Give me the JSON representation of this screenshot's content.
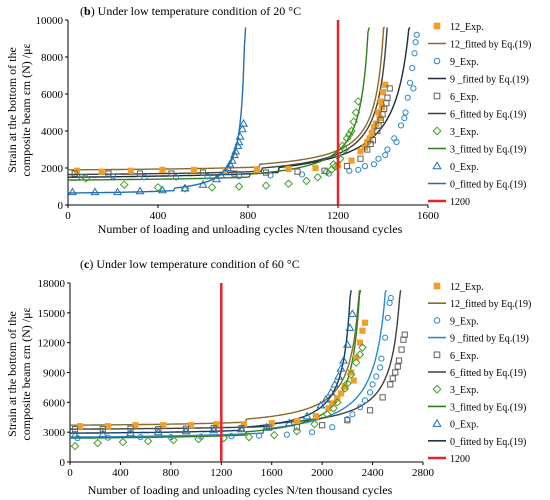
{
  "chart_data": [
    {
      "type": "scatter",
      "title_prefix": "(",
      "title_letter": "b",
      "title_rest": ") Under low temperature condition of 20 °C",
      "xlabel": "Number of loading and unloading cycles N/ten thousand cycles",
      "ylabel_line1": "Strain at the bottom of the",
      "ylabel_line2": "composite beam εm (N) /με",
      "xlim": [
        0,
        1600
      ],
      "ylim": [
        0,
        10000
      ],
      "xticks": [
        "0",
        "400",
        "800",
        "1200",
        "1600"
      ],
      "yticks": [
        "0",
        "2000",
        "4000",
        "6000",
        "8000",
        "10000"
      ],
      "grid": false,
      "legend_position": "right",
      "vline": {
        "x": 1200,
        "label": "1200",
        "color": "#e8232a"
      },
      "series": [
        {
          "name": "12_Exp.",
          "kind": "points",
          "marker": "square",
          "color": "#f0a028",
          "fit": {
            "label": "12_fitted by Eq.(19)",
            "color": "#8a6a2a",
            "a": 1900,
            "b": 210,
            "nf": 1420
          }
        },
        {
          "name": "9_Exp.",
          "kind": "points",
          "marker": "circle",
          "color": "#2a8ac8",
          "fit": {
            "label": "9 _fitted by Eq.(19)",
            "color": "#1e2a3a",
            "a": 1500,
            "b": 360,
            "nf": 1560
          }
        },
        {
          "name": "6_Exp.",
          "kind": "points",
          "marker": "square",
          "color": "#606060",
          "fit": {
            "label": "6_fitted by Eq.(19)",
            "color": "#404040",
            "a": 1650,
            "b": 240,
            "nf": 1440
          }
        },
        {
          "name": "3_Exp.",
          "kind": "points",
          "marker": "diamond",
          "color": "#43a02a",
          "fit": {
            "label": "3_fitted by Eq.(19)",
            "color": "#2e7d1e",
            "a": 1350,
            "b": 220,
            "nf": 1350
          }
        },
        {
          "name": "0_Exp.",
          "kind": "points",
          "marker": "triangle",
          "color": "#1f6fb5",
          "fit": {
            "label": "0_fitted by Eq.(19)",
            "color": "#1f6fb5",
            "a": 650,
            "b": 180,
            "nf": 790
          }
        }
      ],
      "points": {
        "12_Exp.": [
          [
            40,
            1850
          ],
          [
            150,
            1800
          ],
          [
            280,
            1850
          ],
          [
            420,
            1900
          ],
          [
            560,
            1900
          ],
          [
            700,
            1850
          ],
          [
            840,
            1900
          ],
          [
            980,
            1950
          ],
          [
            1100,
            2000
          ],
          [
            1200,
            2150
          ],
          [
            1260,
            2400
          ],
          [
            1300,
            2900
          ],
          [
            1330,
            3400
          ],
          [
            1350,
            3900
          ],
          [
            1370,
            4400
          ],
          [
            1380,
            5000
          ],
          [
            1390,
            5600
          ],
          [
            1400,
            6100
          ],
          [
            1410,
            6500
          ],
          [
            1395,
            5300
          ],
          [
            1385,
            4700
          ],
          [
            1360,
            4200
          ],
          [
            1340,
            3600
          ],
          [
            1320,
            3100
          ]
        ],
        "9_Exp.": [
          [
            60,
            1500
          ],
          [
            200,
            1550
          ],
          [
            340,
            1500
          ],
          [
            480,
            1500
          ],
          [
            620,
            1550
          ],
          [
            760,
            1550
          ],
          [
            900,
            1600
          ],
          [
            1040,
            1650
          ],
          [
            1160,
            1700
          ],
          [
            1250,
            1850
          ],
          [
            1320,
            2100
          ],
          [
            1380,
            2500
          ],
          [
            1420,
            3000
          ],
          [
            1450,
            3600
          ],
          [
            1480,
            4300
          ],
          [
            1500,
            5000
          ],
          [
            1510,
            5800
          ],
          [
            1520,
            6600
          ],
          [
            1530,
            7400
          ],
          [
            1540,
            8200
          ],
          [
            1545,
            8800
          ],
          [
            1550,
            9200
          ],
          [
            1535,
            6300
          ],
          [
            1495,
            4700
          ],
          [
            1460,
            3400
          ],
          [
            1410,
            2700
          ],
          [
            1360,
            2200
          ],
          [
            1290,
            1900
          ]
        ],
        "6_Exp.": [
          [
            30,
            1700
          ],
          [
            180,
            1700
          ],
          [
            320,
            1700
          ],
          [
            460,
            1700
          ],
          [
            600,
            1750
          ],
          [
            740,
            1700
          ],
          [
            880,
            1750
          ],
          [
            1020,
            1800
          ],
          [
            1140,
            1850
          ],
          [
            1240,
            2100
          ],
          [
            1300,
            2500
          ],
          [
            1330,
            3000
          ],
          [
            1355,
            3500
          ],
          [
            1375,
            4000
          ],
          [
            1390,
            4600
          ],
          [
            1405,
            5200
          ],
          [
            1420,
            5800
          ],
          [
            1430,
            6300
          ],
          [
            1415,
            5500
          ],
          [
            1398,
            4900
          ],
          [
            1380,
            4300
          ],
          [
            1345,
            3300
          ]
        ],
        "3_Exp.": [
          [
            80,
            1450
          ],
          [
            250,
            1100
          ],
          [
            400,
            950
          ],
          [
            520,
            900
          ],
          [
            640,
            950
          ],
          [
            760,
            1000
          ],
          [
            880,
            1050
          ],
          [
            980,
            1150
          ],
          [
            1060,
            1300
          ],
          [
            1110,
            1500
          ],
          [
            1150,
            1800
          ],
          [
            1180,
            2200
          ],
          [
            1200,
            2700
          ],
          [
            1220,
            3200
          ],
          [
            1240,
            3600
          ],
          [
            1260,
            4000
          ],
          [
            1270,
            4500
          ],
          [
            1280,
            5000
          ],
          [
            1290,
            5600
          ],
          [
            1210,
            2500
          ],
          [
            1190,
            2100
          ],
          [
            1250,
            3800
          ],
          [
            1230,
            3000
          ],
          [
            1170,
            1900
          ]
        ],
        "0_Exp.": [
          [
            20,
            700
          ],
          [
            120,
            700
          ],
          [
            220,
            700
          ],
          [
            320,
            750
          ],
          [
            420,
            800
          ],
          [
            520,
            900
          ],
          [
            600,
            1100
          ],
          [
            660,
            1400
          ],
          [
            700,
            1800
          ],
          [
            720,
            2200
          ],
          [
            740,
            2700
          ],
          [
            755,
            3200
          ],
          [
            765,
            3700
          ],
          [
            775,
            4100
          ],
          [
            780,
            4400
          ],
          [
            760,
            3400
          ],
          [
            745,
            2900
          ],
          [
            730,
            2400
          ],
          [
            710,
            2000
          ],
          [
            680,
            1600
          ]
        ]
      }
    },
    {
      "type": "scatter",
      "title_prefix": "(",
      "title_letter": "c",
      "title_rest": ") Under low temperature condition of 60 °C",
      "xlabel": "Number of loading and unloading cycles N/ten thousand cycles",
      "ylabel_line1": "Strain at the bottom of the",
      "ylabel_line2": "composite beam εm (N) /με",
      "xlim": [
        0,
        2800
      ],
      "ylim": [
        0,
        18000
      ],
      "xticks": [
        "0",
        "400",
        "800",
        "1200",
        "1600",
        "2000",
        "2400",
        "2800"
      ],
      "yticks": [
        "0",
        "3000",
        "6000",
        "9000",
        "12000",
        "15000",
        "18000"
      ],
      "grid": false,
      "legend_position": "right",
      "vline": {
        "x": 1200,
        "label": "1200",
        "color": "#e8232a"
      },
      "series": [
        {
          "name": "12_Exp.",
          "kind": "points",
          "marker": "square",
          "color": "#f0a028",
          "fit": {
            "label": "12_fitted by Eq.(19)",
            "color": "#8a6a2a",
            "a": 3700,
            "b": 420,
            "nf": 2330
          }
        },
        {
          "name": "9_Exp.",
          "kind": "points",
          "marker": "circle",
          "color": "#2a8ac8",
          "fit": {
            "label": "9 _fitted by Eq.(19)",
            "color": "#2a8ac8",
            "a": 2500,
            "b": 560,
            "nf": 2560
          }
        },
        {
          "name": "6_Exp.",
          "kind": "points",
          "marker": "square",
          "color": "#606060",
          "fit": {
            "label": "6_fitted by Eq.(19)",
            "color": "#404040",
            "a": 3300,
            "b": 380,
            "nf": 2650
          }
        },
        {
          "name": "3_Exp.",
          "kind": "points",
          "marker": "diamond",
          "color": "#43a02a",
          "fit": {
            "label": "3_fitted by Eq.(19)",
            "color": "#2e7d1e",
            "a": 2400,
            "b": 430,
            "nf": 2330
          }
        },
        {
          "name": "0_Exp.",
          "kind": "points",
          "marker": "triangle",
          "color": "#1f6fb5",
          "fit": {
            "label": "0_fitted by Eq.(19)",
            "color": "#163a5a",
            "a": 2900,
            "b": 380,
            "nf": 2250
          }
        }
      ],
      "points": {
        "12_Exp.": [
          [
            80,
            3600
          ],
          [
            300,
            3600
          ],
          [
            520,
            3700
          ],
          [
            740,
            3700
          ],
          [
            960,
            3700
          ],
          [
            1160,
            3800
          ],
          [
            1380,
            3800
          ],
          [
            1600,
            3900
          ],
          [
            1800,
            4100
          ],
          [
            1950,
            4600
          ],
          [
            2050,
            5400
          ],
          [
            2120,
            6400
          ],
          [
            2180,
            7600
          ],
          [
            2230,
            9000
          ],
          [
            2270,
            10500
          ],
          [
            2300,
            12000
          ],
          [
            2320,
            13200
          ],
          [
            2340,
            14000
          ],
          [
            2250,
            8200
          ],
          [
            2150,
            6900
          ],
          [
            2080,
            5900
          ]
        ],
        "9_Exp.": [
          [
            60,
            2400
          ],
          [
            300,
            2450
          ],
          [
            560,
            2500
          ],
          [
            800,
            2500
          ],
          [
            1040,
            2550
          ],
          [
            1280,
            2600
          ],
          [
            1500,
            2650
          ],
          [
            1720,
            2750
          ],
          [
            1920,
            3000
          ],
          [
            2080,
            3500
          ],
          [
            2200,
            4300
          ],
          [
            2300,
            5500
          ],
          [
            2380,
            7000
          ],
          [
            2430,
            8600
          ],
          [
            2470,
            10400
          ],
          [
            2500,
            12500
          ],
          [
            2520,
            14500
          ],
          [
            2535,
            16000
          ],
          [
            2545,
            16500
          ],
          [
            2460,
            9500
          ],
          [
            2400,
            7800
          ],
          [
            2340,
            6200
          ],
          [
            2240,
            4800
          ]
        ],
        "6_Exp.": [
          [
            40,
            3300
          ],
          [
            260,
            3300
          ],
          [
            480,
            3350
          ],
          [
            700,
            3300
          ],
          [
            920,
            3350
          ],
          [
            1140,
            3400
          ],
          [
            1360,
            3400
          ],
          [
            1580,
            3450
          ],
          [
            1800,
            3500
          ],
          [
            2000,
            3700
          ],
          [
            2200,
            4200
          ],
          [
            2380,
            5200
          ],
          [
            2480,
            6500
          ],
          [
            2540,
            7800
          ],
          [
            2580,
            9000
          ],
          [
            2610,
            10200
          ],
          [
            2630,
            11300
          ],
          [
            2645,
            12300
          ],
          [
            2655,
            12800
          ],
          [
            2600,
            9600
          ],
          [
            2560,
            8400
          ]
        ],
        "3_Exp.": [
          [
            40,
            1600
          ],
          [
            220,
            1900
          ],
          [
            420,
            2000
          ],
          [
            620,
            2100
          ],
          [
            820,
            2200
          ],
          [
            1020,
            2300
          ],
          [
            1220,
            2400
          ],
          [
            1420,
            2500
          ],
          [
            1620,
            2700
          ],
          [
            1800,
            3100
          ],
          [
            1940,
            3800
          ],
          [
            2040,
            4800
          ],
          [
            2120,
            6000
          ],
          [
            2180,
            7400
          ],
          [
            2230,
            8800
          ],
          [
            2270,
            10000
          ],
          [
            2300,
            10800
          ],
          [
            2320,
            11500
          ],
          [
            2200,
            7900
          ],
          [
            2090,
            5400
          ]
        ],
        "0_Exp.": [
          [
            40,
            2700
          ],
          [
            260,
            2800
          ],
          [
            480,
            2900
          ],
          [
            700,
            3000
          ],
          [
            920,
            3100
          ],
          [
            1140,
            3200
          ],
          [
            1360,
            3300
          ],
          [
            1560,
            3500
          ],
          [
            1740,
            3900
          ],
          [
            1880,
            4600
          ],
          [
            1990,
            5700
          ],
          [
            2070,
            7000
          ],
          [
            2130,
            8600
          ],
          [
            2170,
            10200
          ],
          [
            2200,
            11800
          ],
          [
            2220,
            13500
          ],
          [
            2240,
            14900
          ],
          [
            2150,
            9400
          ],
          [
            2100,
            7800
          ],
          [
            2030,
            6300
          ]
        ]
      }
    }
  ]
}
